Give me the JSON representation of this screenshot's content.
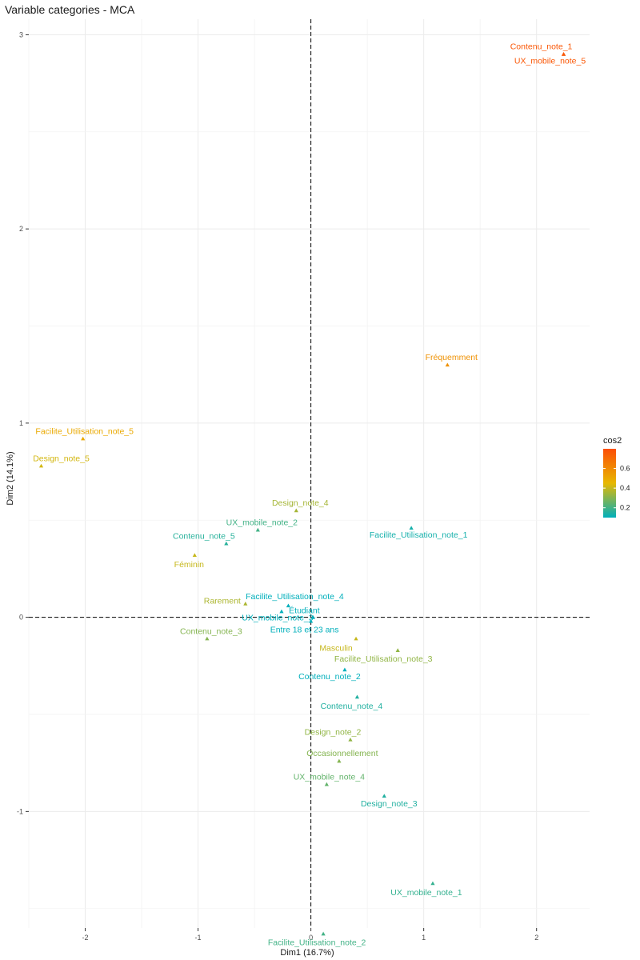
{
  "chart_data": {
    "type": "scatter",
    "title": "Variable categories - MCA",
    "xlabel": "Dim1 (16.7%)",
    "ylabel": "Dim2 (14.1%)",
    "xlim": [
      -2.5,
      2.47
    ],
    "ylim": [
      -1.6,
      3.08
    ],
    "x_ticks": [
      -2,
      -1,
      0,
      1,
      2
    ],
    "y_ticks": [
      -1,
      0,
      1,
      2,
      3
    ],
    "grid": true,
    "reference_lines": {
      "x": 0,
      "y": 0
    },
    "legend": {
      "title": "cos2",
      "position": "right",
      "ticks": [
        0.2,
        0.4,
        0.6
      ],
      "range": [
        0.1,
        0.8
      ],
      "gradient": [
        "#00AFBB",
        "#E7B800",
        "#FC4E07"
      ]
    },
    "points": [
      {
        "label": "Contenu_note_1",
        "x": 2.24,
        "y": 2.9,
        "cos2": 0.77
      },
      {
        "label": "UX_mobile_note_5",
        "x": 2.24,
        "y": 2.9,
        "cos2": 0.77
      },
      {
        "label": "Fréquemment",
        "x": 1.21,
        "y": 1.3,
        "cos2": 0.58
      },
      {
        "label": "Facilite_Utilisation_note_5",
        "x": -2.02,
        "y": 0.92,
        "cos2": 0.5
      },
      {
        "label": "Design_note_5",
        "x": -2.39,
        "y": 0.78,
        "cos2": 0.42
      },
      {
        "label": "Design_note_4",
        "x": -0.13,
        "y": 0.55,
        "cos2": 0.35
      },
      {
        "label": "UX_mobile_note_2",
        "x": -0.47,
        "y": 0.45,
        "cos2": 0.2
      },
      {
        "label": "Facilite_Utilisation_note_1",
        "x": 0.89,
        "y": 0.46,
        "cos2": 0.13
      },
      {
        "label": "Contenu_note_5",
        "x": -0.75,
        "y": 0.38,
        "cos2": 0.16
      },
      {
        "label": "Féminin",
        "x": -1.03,
        "y": 0.32,
        "cos2": 0.4
      },
      {
        "label": "Rarement",
        "x": -0.58,
        "y": 0.07,
        "cos2": 0.36
      },
      {
        "label": "Facilite_Utilisation_note_4",
        "x": -0.2,
        "y": 0.06,
        "cos2": 0.05
      },
      {
        "label": "UX_mobile_note_3",
        "x": -0.26,
        "y": 0.03,
        "cos2": 0.06
      },
      {
        "label": "Étudiant",
        "x": 0.02,
        "y": 0.0,
        "cos2": 0.01
      },
      {
        "label": "Entre 18 et 23 ans",
        "x": 0.0,
        "y": -0.02,
        "cos2": 0.01
      },
      {
        "label": "Contenu_note_3",
        "x": -0.92,
        "y": -0.11,
        "cos2": 0.3
      },
      {
        "label": "Masculin",
        "x": 0.4,
        "y": -0.11,
        "cos2": 0.4
      },
      {
        "label": "Facilite_Utilisation_note_3",
        "x": 0.77,
        "y": -0.17,
        "cos2": 0.32
      },
      {
        "label": "Contenu_note_2",
        "x": 0.3,
        "y": -0.27,
        "cos2": 0.08
      },
      {
        "label": "Contenu_note_4",
        "x": 0.41,
        "y": -0.41,
        "cos2": 0.15
      },
      {
        "label": "Design_note_2",
        "x": 0.35,
        "y": -0.63,
        "cos2": 0.32
      },
      {
        "label": "Occasionnellement",
        "x": 0.25,
        "y": -0.74,
        "cos2": 0.3
      },
      {
        "label": "UX_mobile_note_4",
        "x": 0.14,
        "y": -0.86,
        "cos2": 0.25
      },
      {
        "label": "Design_note_3",
        "x": 0.65,
        "y": -0.92,
        "cos2": 0.15
      },
      {
        "label": "UX_mobile_note_1",
        "x": 1.08,
        "y": -1.37,
        "cos2": 0.18
      },
      {
        "label": "Facilite_Utilisation_note_2",
        "x": 0.11,
        "y": -1.63,
        "cos2": 0.2
      }
    ]
  }
}
